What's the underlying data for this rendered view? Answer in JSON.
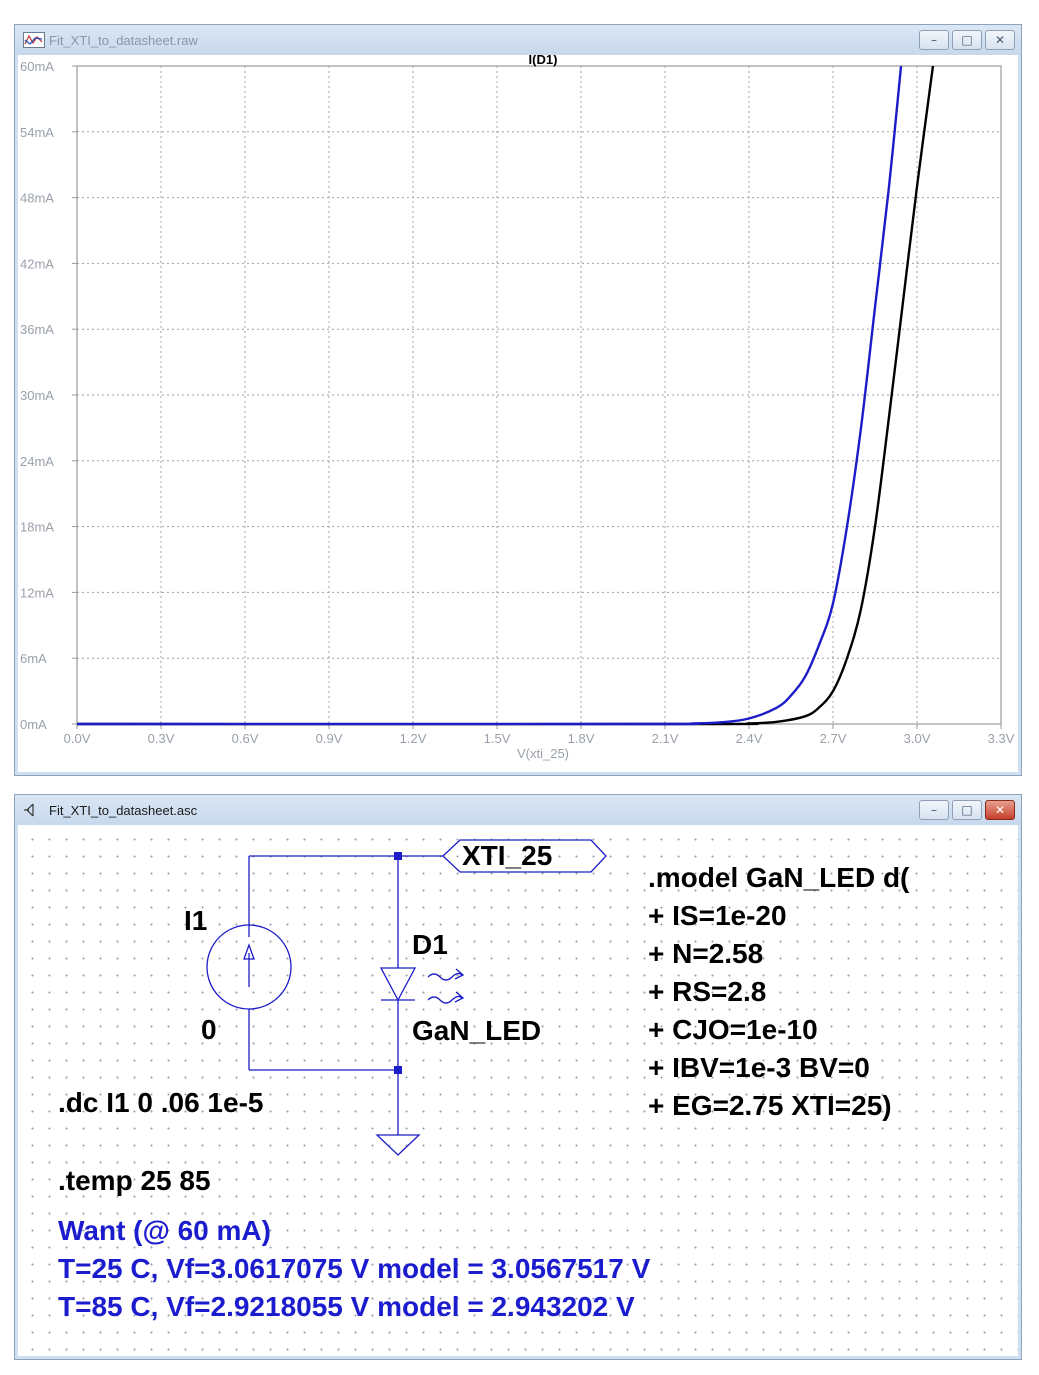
{
  "plot_window": {
    "title": "Fit_XTI_to_datasheet.raw",
    "buttons": {
      "minimize": "–",
      "maximize": "□",
      "close": "✕"
    }
  },
  "schematic_window": {
    "title": "Fit_XTI_to_datasheet.asc",
    "buttons": {
      "minimize": "–",
      "maximize": "□",
      "close": "✕"
    }
  },
  "chart_data": {
    "type": "line",
    "title": "I(D1)",
    "xlabel": "V(xti_25)",
    "ylabel": "",
    "xlim": [
      0,
      3.3
    ],
    "ylim": [
      0,
      60
    ],
    "x_ticks": [
      "0.0V",
      "0.3V",
      "0.6V",
      "0.9V",
      "1.2V",
      "1.5V",
      "1.8V",
      "2.1V",
      "2.4V",
      "2.7V",
      "3.0V",
      "3.3V"
    ],
    "y_ticks": [
      "0mA",
      "6mA",
      "12mA",
      "18mA",
      "24mA",
      "30mA",
      "36mA",
      "42mA",
      "48mA",
      "54mA",
      "60mA"
    ],
    "grid": true,
    "series": [
      {
        "color": "#1c1cc8",
        "x": [
          0.0,
          2.0,
          2.2,
          2.3,
          2.4,
          2.5,
          2.55,
          2.6,
          2.65,
          2.7,
          2.75,
          2.8,
          2.85,
          2.9,
          2.943
        ],
        "y": [
          0,
          0,
          0.05,
          0.15,
          0.5,
          1.5,
          2.6,
          4.3,
          7.2,
          11.0,
          18.0,
          27.0,
          38.0,
          49.0,
          60.0
        ]
      },
      {
        "color": "#000000",
        "x": [
          0.0,
          2.2,
          2.4,
          2.5,
          2.6,
          2.65,
          2.7,
          2.75,
          2.8,
          2.85,
          2.9,
          2.95,
          3.0,
          3.057
        ],
        "y": [
          0,
          0,
          0.05,
          0.2,
          0.7,
          1.5,
          3.0,
          6.0,
          10.5,
          18.0,
          28.0,
          38.5,
          49.0,
          60.0
        ]
      }
    ]
  },
  "schematic": {
    "source_name": "I1",
    "source_value": "0",
    "diode_name": "D1",
    "diode_model": "GaN_LED",
    "net_label": "XTI_25",
    "dc_directive": ".dc I1 0 .06 1e-5",
    "temp_directive": ".temp  25 85",
    "model_lines": [
      ".model GaN_LED d(",
      "+ IS=1e-20",
      "+ N=2.58",
      "+ RS=2.8",
      "+ CJO=1e-10",
      "+ IBV=1e-3 BV=0",
      "+ EG=2.75 XTI=25)"
    ],
    "want_lines": [
      "Want (@ 60 mA)",
      "T=25 C, Vf=3.0617075 V model = 3.0567517 V",
      "T=85 C, Vf=2.9218055 V model = 2.943202 V"
    ]
  }
}
